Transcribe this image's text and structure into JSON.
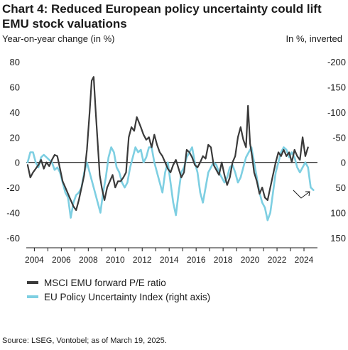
{
  "title": "Chart 4: Reduced European policy uncertainty could lift EMU stock valuations",
  "left_unit": "Year-on-year change (in %)",
  "right_unit": "In %, inverted",
  "source": "Source: LSEG, Vontobel; as of March 19, 2025.",
  "colors": {
    "pe": "#3a3a3a",
    "epu": "#7ecfe2",
    "axis": "#1a1a1a"
  },
  "chart_data": {
    "type": "line",
    "title": "Chart 4: Reduced European policy uncertainty could lift EMU stock valuations",
    "xlabel": "",
    "ylabel": "Year-on-year change (in %)",
    "y2label": "In %, inverted",
    "xlim": [
      2003.4,
      2025.0
    ],
    "ylim": [
      -60,
      80
    ],
    "y2lim": [
      150,
      -200
    ],
    "y2_inverted": true,
    "x_ticks": [
      "2004",
      "2006",
      "2008",
      "2010",
      "2012",
      "2014",
      "2016",
      "2018",
      "2020",
      "2022",
      "2024"
    ],
    "y_ticks": [
      "80",
      "60",
      "40",
      "20",
      "0",
      "-20",
      "-40",
      "-60"
    ],
    "y2_ticks": [
      "-200",
      "-150",
      "-100",
      "-50",
      "0",
      "50",
      "100",
      "150"
    ],
    "legend_position": "bottom-left",
    "series": [
      {
        "name": "MSCI EMU forward P/E ratio",
        "axis": "left",
        "x": [
          2003.5,
          2003.7,
          2003.9,
          2004.1,
          2004.3,
          2004.5,
          2004.7,
          2004.9,
          2005.1,
          2005.3,
          2005.5,
          2005.7,
          2005.9,
          2006.1,
          2006.3,
          2006.5,
          2006.7,
          2006.9,
          2007.1,
          2007.3,
          2007.5,
          2007.7,
          2007.9,
          2008.1,
          2008.25,
          2008.4,
          2008.55,
          2008.7,
          2008.85,
          2009.0,
          2009.2,
          2009.4,
          2009.6,
          2009.8,
          2010.0,
          2010.2,
          2010.4,
          2010.6,
          2010.8,
          2011.0,
          2011.2,
          2011.4,
          2011.6,
          2011.75,
          2011.9,
          2012.1,
          2012.3,
          2012.5,
          2012.7,
          2012.9,
          2013.1,
          2013.3,
          2013.5,
          2013.7,
          2013.9,
          2014.1,
          2014.3,
          2014.5,
          2014.7,
          2014.9,
          2015.1,
          2015.3,
          2015.5,
          2015.7,
          2015.9,
          2016.1,
          2016.3,
          2016.5,
          2016.7,
          2016.9,
          2017.1,
          2017.3,
          2017.5,
          2017.7,
          2017.9,
          2018.1,
          2018.3,
          2018.5,
          2018.7,
          2018.9,
          2019.1,
          2019.3,
          2019.5,
          2019.7,
          2019.85,
          2020.0,
          2020.15,
          2020.3,
          2020.5,
          2020.7,
          2020.9,
          2021.1,
          2021.3,
          2021.5,
          2021.7,
          2021.9,
          2022.1,
          2022.3,
          2022.5,
          2022.7,
          2022.9,
          2023.1,
          2023.3,
          2023.5,
          2023.7,
          2023.9,
          2024.1,
          2024.3
        ],
        "values": [
          -2,
          -12,
          -8,
          -5,
          -2,
          2,
          -5,
          0,
          -3,
          2,
          6,
          5,
          -5,
          -15,
          -20,
          -25,
          -30,
          -35,
          -38,
          -30,
          -20,
          -10,
          10,
          40,
          65,
          68,
          40,
          15,
          -10,
          -20,
          -30,
          -20,
          -15,
          -10,
          -20,
          -15,
          -15,
          -12,
          -8,
          20,
          28,
          25,
          36,
          32,
          28,
          22,
          18,
          20,
          12,
          22,
          14,
          8,
          5,
          0,
          -5,
          -8,
          -2,
          2,
          -5,
          -12,
          -8,
          10,
          8,
          4,
          -2,
          -4,
          0,
          5,
          3,
          14,
          12,
          -2,
          -6,
          -10,
          0,
          -10,
          -18,
          -12,
          0,
          5,
          20,
          28,
          18,
          12,
          45,
          15,
          5,
          -8,
          -15,
          -25,
          -20,
          -28,
          -30,
          -20,
          -10,
          0,
          8,
          5,
          10,
          5,
          8,
          0,
          10,
          5,
          2,
          20,
          5,
          12
        ]
      },
      {
        "name": "EU Policy Uncertainty Index (right axis)",
        "axis": "right",
        "x": [
          2003.5,
          2003.7,
          2003.9,
          2004.1,
          2004.3,
          2004.5,
          2004.7,
          2004.9,
          2005.1,
          2005.3,
          2005.5,
          2005.7,
          2005.9,
          2006.1,
          2006.3,
          2006.5,
          2006.7,
          2006.9,
          2007.1,
          2007.3,
          2007.5,
          2007.7,
          2007.9,
          2008.1,
          2008.3,
          2008.5,
          2008.7,
          2008.9,
          2009.1,
          2009.3,
          2009.5,
          2009.7,
          2009.9,
          2010.1,
          2010.3,
          2010.5,
          2010.7,
          2010.9,
          2011.1,
          2011.3,
          2011.5,
          2011.7,
          2011.9,
          2012.1,
          2012.3,
          2012.5,
          2012.7,
          2012.9,
          2013.1,
          2013.3,
          2013.5,
          2013.7,
          2013.9,
          2014.1,
          2014.3,
          2014.5,
          2014.7,
          2014.9,
          2015.1,
          2015.3,
          2015.5,
          2015.7,
          2015.9,
          2016.1,
          2016.3,
          2016.5,
          2016.7,
          2016.9,
          2017.1,
          2017.3,
          2017.5,
          2017.7,
          2017.9,
          2018.1,
          2018.3,
          2018.5,
          2018.7,
          2018.9,
          2019.1,
          2019.3,
          2019.5,
          2019.7,
          2019.9,
          2020.1,
          2020.3,
          2020.5,
          2020.7,
          2020.9,
          2021.1,
          2021.3,
          2021.5,
          2021.7,
          2021.9,
          2022.1,
          2022.3,
          2022.5,
          2022.7,
          2022.9,
          2023.1,
          2023.3,
          2023.5,
          2023.7,
          2023.9,
          2024.1,
          2024.3,
          2024.5,
          2024.7
        ],
        "values": [
          0,
          -20,
          -20,
          0,
          10,
          -10,
          -15,
          -10,
          -5,
          0,
          15,
          10,
          20,
          40,
          60,
          70,
          110,
          80,
          65,
          60,
          50,
          20,
          0,
          20,
          40,
          60,
          80,
          100,
          60,
          30,
          -10,
          -30,
          -20,
          10,
          20,
          40,
          50,
          40,
          10,
          -10,
          -30,
          -20,
          -25,
          0,
          -10,
          -30,
          -30,
          0,
          20,
          40,
          60,
          20,
          0,
          40,
          80,
          105,
          60,
          20,
          10,
          -10,
          -20,
          -30,
          0,
          20,
          60,
          80,
          50,
          20,
          10,
          0,
          5,
          20,
          30,
          40,
          30,
          10,
          5,
          20,
          40,
          30,
          10,
          -10,
          -20,
          -30,
          0,
          30,
          60,
          80,
          90,
          115,
          100,
          60,
          20,
          0,
          -20,
          -30,
          -25,
          -10,
          -20,
          -10,
          10,
          20,
          10,
          0,
          10,
          50,
          55
        ]
      }
    ],
    "annotations": [
      "arrow-down-then-up"
    ]
  }
}
